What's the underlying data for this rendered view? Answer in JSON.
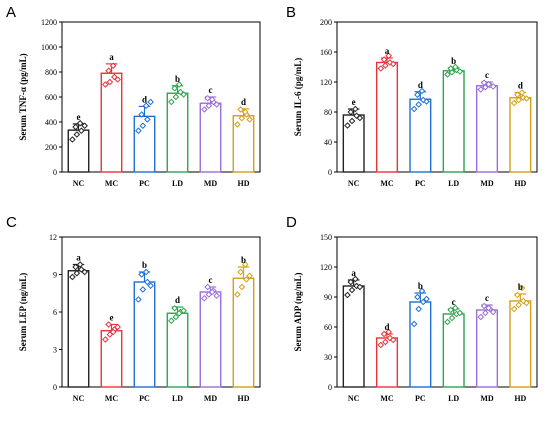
{
  "colors": {
    "NC": "#222222",
    "MC": "#e8333a",
    "PC": "#1f6fd1",
    "LD": "#2ea44f",
    "MD": "#9b6fd6",
    "HD": "#d4a017"
  },
  "chart_data": [
    {
      "panel": "A",
      "type": "bar",
      "ylabel": "Serum TNF-α (pg/mL)",
      "ylim": [
        0,
        1200
      ],
      "yticks": [
        0,
        200,
        400,
        600,
        800,
        1000,
        1200
      ],
      "categories": [
        "NC",
        "MC",
        "PC",
        "LD",
        "MD",
        "HD"
      ],
      "values": [
        335,
        790,
        445,
        630,
        550,
        450
      ],
      "errors": [
        50,
        75,
        80,
        60,
        50,
        55
      ],
      "letters": [
        "e",
        "a",
        "d",
        "b",
        "c",
        "d"
      ],
      "points": [
        [
          260,
          300,
          330,
          360,
          390,
          370
        ],
        [
          700,
          720,
          760,
          810,
          850,
          740
        ],
        [
          330,
          370,
          420,
          460,
          530,
          560
        ],
        [
          560,
          600,
          640,
          670,
          700,
          620
        ],
        [
          500,
          530,
          560,
          590,
          580,
          540
        ],
        [
          380,
          430,
          460,
          500,
          480,
          420
        ]
      ]
    },
    {
      "panel": "B",
      "type": "bar",
      "ylabel": "Serum IL-6 (pg/mL)",
      "ylim": [
        0,
        200
      ],
      "yticks": [
        0,
        40,
        80,
        120,
        160,
        200
      ],
      "categories": [
        "NC",
        "MC",
        "PC",
        "LD",
        "MD",
        "HD"
      ],
      "values": [
        76,
        146,
        97,
        135,
        115,
        99
      ],
      "errors": [
        8,
        6,
        10,
        4,
        5,
        7
      ],
      "letters": [
        "e",
        "a",
        "d",
        "b",
        "c",
        "d"
      ],
      "points": [
        [
          62,
          68,
          75,
          80,
          84,
          72
        ],
        [
          138,
          142,
          146,
          150,
          155,
          144
        ],
        [
          84,
          90,
          96,
          103,
          108,
          94
        ],
        [
          130,
          133,
          136,
          138,
          140,
          134
        ],
        [
          110,
          113,
          116,
          119,
          117,
          114
        ],
        [
          92,
          96,
          99,
          103,
          106,
          98
        ]
      ]
    },
    {
      "panel": "C",
      "type": "bar",
      "ylabel": "Serum LEP (ng/mL)",
      "ylim": [
        0,
        12
      ],
      "yticks": [
        0,
        3,
        6,
        9,
        12
      ],
      "categories": [
        "NC",
        "MC",
        "PC",
        "LD",
        "MD",
        "HD"
      ],
      "values": [
        9.3,
        4.5,
        8.4,
        5.9,
        7.6,
        8.7
      ],
      "errors": [
        0.5,
        0.5,
        0.8,
        0.5,
        0.4,
        0.9
      ],
      "letters": [
        "a",
        "e",
        "b",
        "d",
        "c",
        "b"
      ],
      "points": [
        [
          8.8,
          9.1,
          9.4,
          9.6,
          9.8,
          9.2
        ],
        [
          3.8,
          4.2,
          4.6,
          5.0,
          4.4,
          4.8
        ],
        [
          7.0,
          7.8,
          8.4,
          9.0,
          9.2,
          8.1
        ],
        [
          5.3,
          5.6,
          6.0,
          6.3,
          5.9,
          6.1
        ],
        [
          7.1,
          7.4,
          7.7,
          8.0,
          7.6,
          7.3
        ],
        [
          7.4,
          8.0,
          8.6,
          9.2,
          9.8,
          8.9
        ]
      ]
    },
    {
      "panel": "D",
      "type": "bar",
      "ylabel": "Serum ADP (ng/mL)",
      "ylim": [
        0,
        150
      ],
      "yticks": [
        0,
        30,
        60,
        90,
        120,
        150
      ],
      "categories": [
        "NC",
        "MC",
        "PC",
        "LD",
        "MD",
        "HD"
      ],
      "values": [
        101,
        49,
        85,
        73,
        77,
        86
      ],
      "errors": [
        6,
        4,
        9,
        5,
        5,
        7
      ],
      "letters": [
        "a",
        "d",
        "b",
        "c",
        "c",
        "b"
      ],
      "points": [
        [
          92,
          97,
          101,
          105,
          108,
          100
        ],
        [
          42,
          45,
          49,
          53,
          55,
          47
        ],
        [
          63,
          78,
          85,
          90,
          96,
          88
        ],
        [
          65,
          69,
          73,
          77,
          79,
          74
        ],
        [
          70,
          74,
          78,
          81,
          79,
          75
        ],
        [
          78,
          82,
          86,
          92,
          99,
          84
        ]
      ]
    }
  ]
}
